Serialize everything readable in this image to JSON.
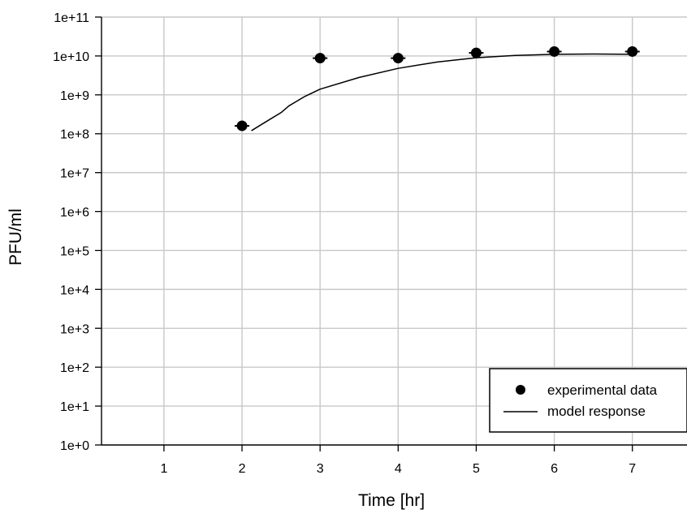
{
  "chart_data": {
    "type": "scatter",
    "title": "",
    "xlabel": "Time [hr]",
    "ylabel": "PFU/ml",
    "xlim": [
      0.2,
      7.7
    ],
    "ylim": [
      0,
      11
    ],
    "y_scale": "log10",
    "grid": true,
    "legend_position": "bottom-right",
    "x_tick_labels": [
      "1",
      "2",
      "3",
      "4",
      "5",
      "6",
      "7"
    ],
    "y_tick_labels": [
      "1e+0",
      "1e+1",
      "1e+2",
      "1e+3",
      "1e+4",
      "1e+5",
      "1e+6",
      "1e+7",
      "1e+8",
      "1e+9",
      "1e+10",
      "1e+11"
    ],
    "series": [
      {
        "name": "experimental data",
        "kind": "scatter",
        "color": "#000000",
        "points": [
          {
            "x": 2,
            "y": 160000000
          },
          {
            "x": 3,
            "y": 8800000000
          },
          {
            "x": 4,
            "y": 8800000000
          },
          {
            "x": 5,
            "y": 12000000000
          },
          {
            "x": 6,
            "y": 13000000000
          },
          {
            "x": 7,
            "y": 13000000000
          }
        ]
      },
      {
        "name": "model response",
        "kind": "line",
        "color": "#000000",
        "points": [
          {
            "x": 2.12,
            "y": 120000000
          },
          {
            "x": 2.3,
            "y": 200000000
          },
          {
            "x": 2.5,
            "y": 350000000
          },
          {
            "x": 2.6,
            "y": 520000000
          },
          {
            "x": 2.8,
            "y": 900000000
          },
          {
            "x": 3.0,
            "y": 1400000000
          },
          {
            "x": 3.5,
            "y": 2800000000
          },
          {
            "x": 4.0,
            "y": 4800000000
          },
          {
            "x": 4.5,
            "y": 7000000000
          },
          {
            "x": 5.0,
            "y": 9000000000
          },
          {
            "x": 5.5,
            "y": 10300000000
          },
          {
            "x": 6.0,
            "y": 11000000000
          },
          {
            "x": 6.5,
            "y": 11200000000
          },
          {
            "x": 7.0,
            "y": 11000000000
          }
        ]
      }
    ]
  }
}
